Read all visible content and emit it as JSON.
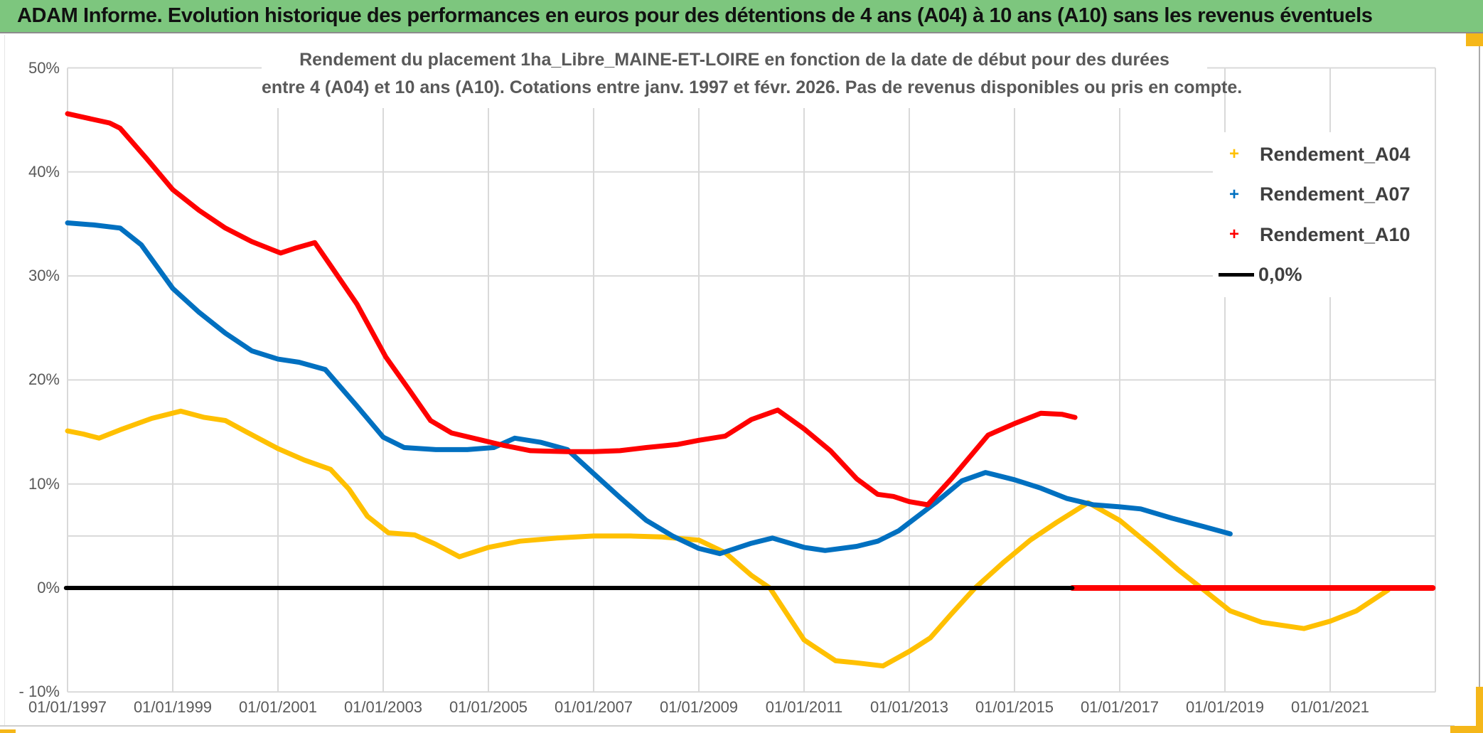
{
  "header": {
    "title": "ADAM Informe. Evolution historique des performances en euros pour des détentions de 4 ans (A04) à 10 ans (A10) sans les revenus éventuels"
  },
  "subtitle": {
    "line1": "Rendement du placement 1ha_Libre_MAINE-ET-LOIRE en fonction de la date de début pour des durées",
    "line2": "entre 4 (A04) et 10 ans (A10). Cotations entre janv. 1997 et févr. 2026. Pas de revenus disponibles ou pris en compte."
  },
  "legend": {
    "items": [
      {
        "label": "Rendement_A04",
        "color": "#FFC000",
        "marker": "+"
      },
      {
        "label": "Rendement_A07",
        "color": "#0070C0",
        "marker": "+"
      },
      {
        "label": "Rendement_A10",
        "color": "#FF0000",
        "marker": "+"
      },
      {
        "label": "0,0%",
        "color": "#000000",
        "marker": "line"
      }
    ]
  },
  "colors": {
    "header_green": "#7dc67e",
    "gold_accent": "#F5B719",
    "gridline": "#D9D9D9",
    "axis_text": "#595959",
    "series_a04": "#FFC000",
    "series_a07": "#0070C0",
    "series_a10": "#FF0000",
    "zero_line": "#000000"
  },
  "chart_data": {
    "type": "line",
    "title": "Rendement du placement 1ha_Libre_MAINE-ET-LOIRE en fonction de la date de début pour des durées entre 4 (A04) et 10 ans (A10). Cotations entre janv. 1997 et févr. 2026. Pas de revenus disponibles ou pris en compte.",
    "xlabel": "",
    "ylabel": "",
    "ylim": [
      -10,
      50
    ],
    "xlim_years": [
      1997,
      2023
    ],
    "grid_years": [
      1997,
      1999,
      2001,
      2003,
      2005,
      2007,
      2009,
      2011,
      2013,
      2015,
      2017,
      2019,
      2021,
      2023
    ],
    "x_ticks": [
      {
        "year": 1997,
        "label": "01/01/1997"
      },
      {
        "year": 1999,
        "label": "01/01/1999"
      },
      {
        "year": 2001,
        "label": "01/01/2001"
      },
      {
        "year": 2003,
        "label": "01/01/2003"
      },
      {
        "year": 2005,
        "label": "01/01/2005"
      },
      {
        "year": 2007,
        "label": "01/01/2007"
      },
      {
        "year": 2009,
        "label": "01/01/2009"
      },
      {
        "year": 2011,
        "label": "01/01/2011"
      },
      {
        "year": 2013,
        "label": "01/01/2013"
      },
      {
        "year": 2015,
        "label": "01/01/2015"
      },
      {
        "year": 2017,
        "label": "01/01/2017"
      },
      {
        "year": 2019,
        "label": "01/01/2019"
      },
      {
        "year": 2021,
        "label": "01/01/2021"
      }
    ],
    "y_ticks": [
      {
        "value": 50,
        "label": "50%"
      },
      {
        "value": 40,
        "label": "40%"
      },
      {
        "value": 30,
        "label": "30%"
      },
      {
        "value": 20,
        "label": "20%"
      },
      {
        "value": 10,
        "label": "10%"
      },
      {
        "value": 0,
        "label": "0%"
      },
      {
        "value": -10,
        "label": "- 10%"
      }
    ],
    "extra_gridline_value": 5,
    "series": [
      {
        "name": "Rendement_A04",
        "color": "#FFC000",
        "width": 7,
        "points": [
          [
            1997.0,
            15.1
          ],
          [
            1997.3,
            14.8
          ],
          [
            1997.6,
            14.4
          ],
          [
            1998.0,
            15.2
          ],
          [
            1998.6,
            16.3
          ],
          [
            1999.15,
            17.0
          ],
          [
            1999.6,
            16.4
          ],
          [
            2000.0,
            16.1
          ],
          [
            2000.4,
            15.0
          ],
          [
            2001.0,
            13.4
          ],
          [
            2001.5,
            12.3
          ],
          [
            2002.0,
            11.4
          ],
          [
            2002.35,
            9.5
          ],
          [
            2002.7,
            6.9
          ],
          [
            2003.1,
            5.3
          ],
          [
            2003.6,
            5.1
          ],
          [
            2004.0,
            4.2
          ],
          [
            2004.45,
            3.0
          ],
          [
            2005.0,
            3.9
          ],
          [
            2005.6,
            4.5
          ],
          [
            2006.3,
            4.8
          ],
          [
            2007.0,
            5.0
          ],
          [
            2007.7,
            5.0
          ],
          [
            2008.3,
            4.9
          ],
          [
            2009.0,
            4.6
          ],
          [
            2009.5,
            3.4
          ],
          [
            2010.0,
            1.2
          ],
          [
            2010.35,
            0.0
          ],
          [
            2011.0,
            -5.0
          ],
          [
            2011.6,
            -7.0
          ],
          [
            2012.0,
            -7.2
          ],
          [
            2012.5,
            -7.5
          ],
          [
            2013.0,
            -6.1
          ],
          [
            2013.4,
            -4.8
          ],
          [
            2013.8,
            -2.5
          ],
          [
            2014.25,
            0.0
          ],
          [
            2014.8,
            2.5
          ],
          [
            2015.3,
            4.6
          ],
          [
            2015.8,
            6.3
          ],
          [
            2016.4,
            8.2
          ],
          [
            2017.0,
            6.5
          ],
          [
            2017.6,
            4.0
          ],
          [
            2018.1,
            1.8
          ],
          [
            2018.55,
            0.0
          ],
          [
            2019.1,
            -2.2
          ],
          [
            2019.7,
            -3.3
          ],
          [
            2020.1,
            -3.6
          ],
          [
            2020.5,
            -3.9
          ],
          [
            2021.0,
            -3.2
          ],
          [
            2021.5,
            -2.2
          ],
          [
            2022.1,
            -0.2
          ]
        ]
      },
      {
        "name": "Rendement_A07",
        "color": "#0070C0",
        "width": 7,
        "points": [
          [
            1997.0,
            35.1
          ],
          [
            1997.5,
            34.9
          ],
          [
            1998.0,
            34.6
          ],
          [
            1998.4,
            33.0
          ],
          [
            1999.0,
            28.8
          ],
          [
            1999.5,
            26.5
          ],
          [
            2000.0,
            24.5
          ],
          [
            2000.5,
            22.8
          ],
          [
            2001.0,
            22.0
          ],
          [
            2001.4,
            21.7
          ],
          [
            2001.9,
            21.0
          ],
          [
            2002.5,
            17.5
          ],
          [
            2003.0,
            14.5
          ],
          [
            2003.4,
            13.5
          ],
          [
            2004.0,
            13.3
          ],
          [
            2004.6,
            13.3
          ],
          [
            2005.1,
            13.5
          ],
          [
            2005.5,
            14.4
          ],
          [
            2006.0,
            14.0
          ],
          [
            2006.5,
            13.3
          ],
          [
            2007.0,
            11.0
          ],
          [
            2007.5,
            8.7
          ],
          [
            2008.0,
            6.5
          ],
          [
            2008.5,
            5.0
          ],
          [
            2009.0,
            3.8
          ],
          [
            2009.4,
            3.3
          ],
          [
            2010.0,
            4.3
          ],
          [
            2010.4,
            4.8
          ],
          [
            2011.0,
            3.9
          ],
          [
            2011.4,
            3.6
          ],
          [
            2012.0,
            4.0
          ],
          [
            2012.4,
            4.5
          ],
          [
            2012.8,
            5.5
          ],
          [
            2013.5,
            8.2
          ],
          [
            2014.0,
            10.3
          ],
          [
            2014.45,
            11.1
          ],
          [
            2015.0,
            10.4
          ],
          [
            2015.5,
            9.6
          ],
          [
            2016.0,
            8.6
          ],
          [
            2016.5,
            8.0
          ],
          [
            2017.0,
            7.8
          ],
          [
            2017.4,
            7.6
          ],
          [
            2018.0,
            6.7
          ],
          [
            2018.6,
            5.9
          ],
          [
            2019.1,
            5.2
          ]
        ]
      },
      {
        "name": "Rendement_A10",
        "color": "#FF0000",
        "width": 7,
        "points": [
          [
            1997.0,
            45.6
          ],
          [
            1997.35,
            45.2
          ],
          [
            1997.8,
            44.7
          ],
          [
            1998.0,
            44.2
          ],
          [
            1998.5,
            41.3
          ],
          [
            1999.0,
            38.3
          ],
          [
            1999.5,
            36.3
          ],
          [
            2000.0,
            34.6
          ],
          [
            2000.5,
            33.3
          ],
          [
            2001.05,
            32.2
          ],
          [
            2001.35,
            32.7
          ],
          [
            2001.7,
            33.2
          ],
          [
            2002.0,
            31.0
          ],
          [
            2002.5,
            27.3
          ],
          [
            2003.05,
            22.2
          ],
          [
            2003.5,
            19.0
          ],
          [
            2003.9,
            16.1
          ],
          [
            2004.3,
            14.9
          ],
          [
            2004.8,
            14.3
          ],
          [
            2005.3,
            13.7
          ],
          [
            2005.8,
            13.2
          ],
          [
            2006.5,
            13.1
          ],
          [
            2007.0,
            13.1
          ],
          [
            2007.5,
            13.2
          ],
          [
            2008.0,
            13.5
          ],
          [
            2008.6,
            13.8
          ],
          [
            2009.0,
            14.2
          ],
          [
            2009.5,
            14.6
          ],
          [
            2010.0,
            16.2
          ],
          [
            2010.5,
            17.1
          ],
          [
            2011.0,
            15.3
          ],
          [
            2011.5,
            13.2
          ],
          [
            2012.0,
            10.5
          ],
          [
            2012.4,
            9.0
          ],
          [
            2012.7,
            8.8
          ],
          [
            2013.0,
            8.3
          ],
          [
            2013.35,
            8.0
          ],
          [
            2013.8,
            10.5
          ],
          [
            2014.5,
            14.7
          ],
          [
            2015.0,
            15.8
          ],
          [
            2015.5,
            16.8
          ],
          [
            2015.9,
            16.7
          ],
          [
            2016.15,
            16.4
          ]
        ]
      },
      {
        "name": "Rendement_A10_zero_apres_fevr_2016",
        "color": "#FF0000",
        "width": 8,
        "points": [
          [
            2016.1,
            0.0
          ],
          [
            2022.95,
            0.0
          ]
        ]
      },
      {
        "name": "ligne_0_0_pourcent",
        "color": "#000000",
        "width": 6,
        "points": [
          [
            1996.97,
            0.0
          ],
          [
            2016.1,
            0.0
          ]
        ]
      }
    ],
    "legend_position": "right"
  }
}
